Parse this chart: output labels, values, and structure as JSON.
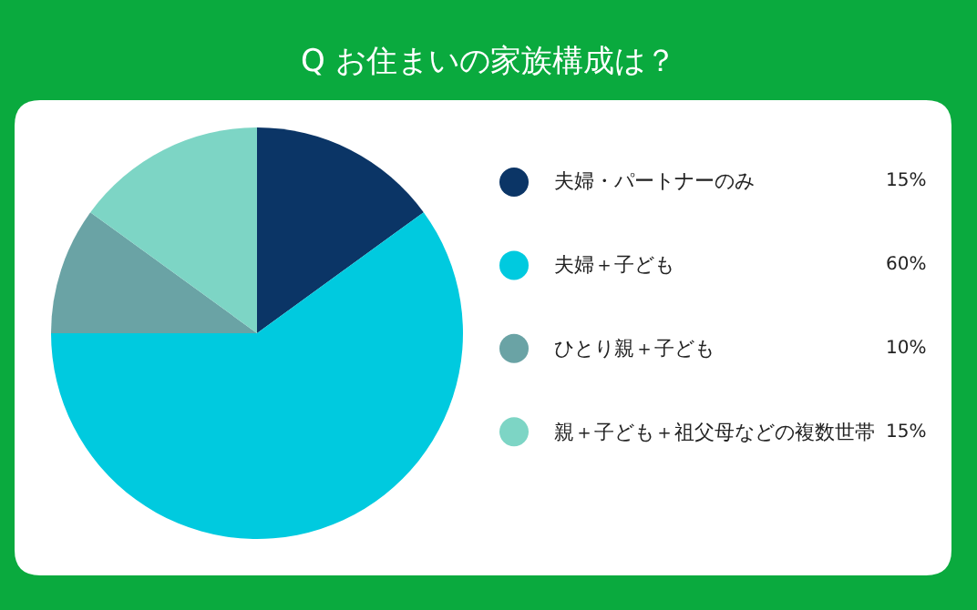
{
  "chart_data": {
    "type": "pie",
    "title": "Q お住まいの家族構成は？",
    "categories": [
      "夫婦・パートナーのみ",
      "夫婦＋子ども",
      "ひとり親＋子ども",
      "親＋子ども＋祖父母などの複数世帯"
    ],
    "values": [
      15,
      60,
      10,
      15
    ],
    "colors": [
      "#0b3566",
      "#00cadf",
      "#6aa3a5",
      "#7dd5c5"
    ],
    "value_labels": [
      "15%",
      "60%",
      "10%",
      "15%"
    ],
    "legend": "right"
  }
}
